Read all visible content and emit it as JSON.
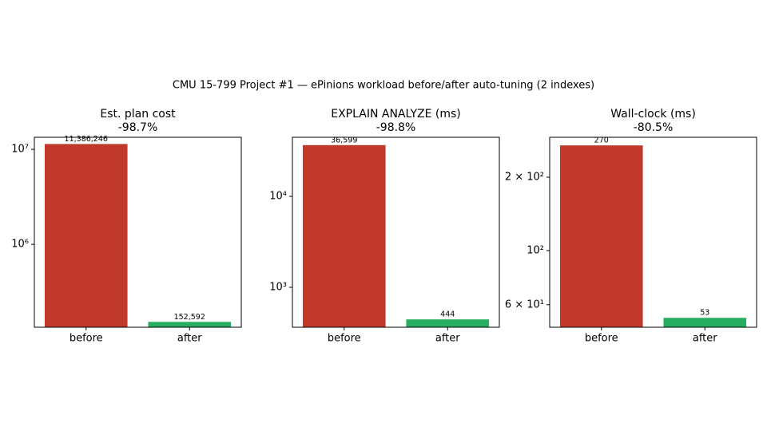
{
  "title": "CMU 15-799 Project #1 — ePinions workload before/after auto-tuning (2 indexes)",
  "chart_data": [
    {
      "type": "bar",
      "title": "Est. plan cost",
      "subtitle": "-98.7%",
      "log_scale": true,
      "categories": [
        "before",
        "after"
      ],
      "values": [
        11386246,
        152592
      ],
      "value_labels": [
        "11,386,246",
        "152,592"
      ],
      "colors": [
        "#c0392b",
        "#27ae60"
      ],
      "ylim": [
        134000,
        13400000
      ],
      "yticks": [
        {
          "value": 1000000,
          "label": "10⁶"
        },
        {
          "value": 10000000,
          "label": "10⁷"
        }
      ]
    },
    {
      "type": "bar",
      "title": "EXPLAIN ANALYZE (ms)",
      "subtitle": "-98.8%",
      "log_scale": true,
      "categories": [
        "before",
        "after"
      ],
      "values": [
        36599,
        444
      ],
      "value_labels": [
        "36,599",
        "444"
      ],
      "colors": [
        "#c0392b",
        "#27ae60"
      ],
      "ylim": [
        364,
        44600
      ],
      "yticks": [
        {
          "value": 1000,
          "label": "10³"
        },
        {
          "value": 10000,
          "label": "10⁴"
        }
      ]
    },
    {
      "type": "bar",
      "title": "Wall-clock (ms)",
      "subtitle": "-80.5%",
      "log_scale": true,
      "categories": [
        "before",
        "after"
      ],
      "values": [
        270,
        53
      ],
      "colors": [
        "#c0392b",
        "#27ae60"
      ],
      "ylim": [
        48.5,
        291.5
      ],
      "yticks": [
        {
          "value": 60,
          "label": "6 × 10¹"
        },
        {
          "value": 100,
          "label": "10²"
        },
        {
          "value": 200,
          "label": "2 × 10²"
        }
      ]
    }
  ]
}
